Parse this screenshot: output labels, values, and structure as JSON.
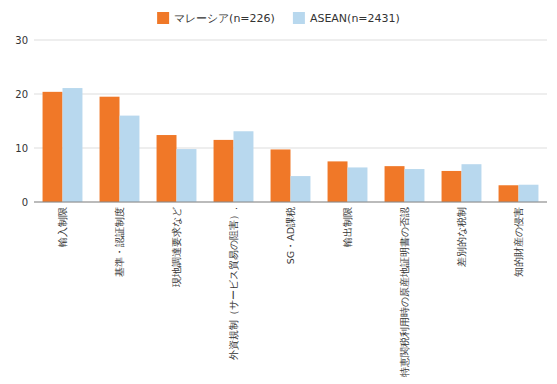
{
  "chart_data": {
    "type": "bar",
    "categories": [
      "輸入制限",
      "基準・認証制度",
      "現地調達要求など",
      "外資規制（サービス貿易の阻害）.",
      "SG・AD課税",
      "輸出制限",
      "特恵関税利用時の原産地証明書の否認",
      "差別的な税制",
      "知的財産の侵害"
    ],
    "series": [
      {
        "name": "マレーシア(n=226)",
        "color": "#F07828",
        "values": [
          20.4,
          19.5,
          12.4,
          11.5,
          9.73,
          7.52,
          6.64,
          5.75,
          3.1
        ]
      },
      {
        "name": "ASEAN(n=2431)",
        "color": "#B8D8EE",
        "values": [
          21.1,
          16.0,
          9.8,
          13.1,
          4.8,
          6.4,
          6.1,
          7.0,
          3.2
        ]
      }
    ],
    "ylim": [
      0,
      30
    ],
    "yticks": [
      0,
      10,
      20,
      30
    ],
    "grid": true,
    "legend": "top"
  }
}
